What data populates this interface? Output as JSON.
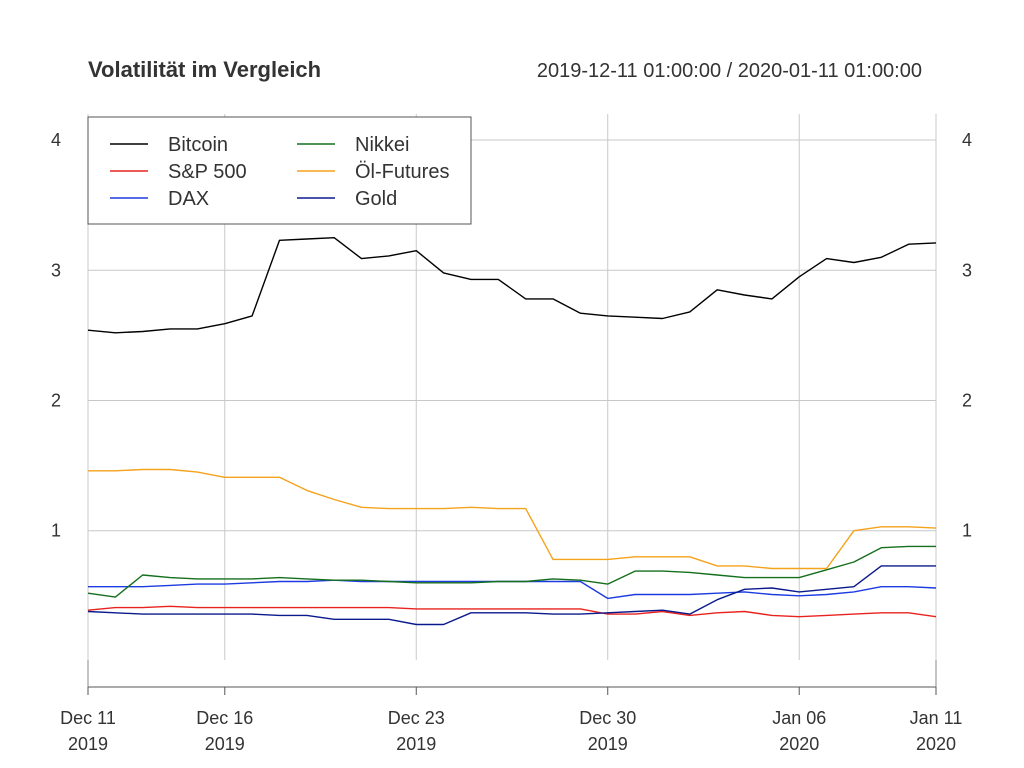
{
  "chart_data": {
    "type": "line",
    "title": "Volatilität im Vergleich",
    "date_range_label": "2019-12-11 01:00:00 / 2020-01-11 01:00:00",
    "xlabel": "",
    "ylabel": "",
    "ylim": [
      -0.2,
      4.2
    ],
    "yticks": [
      "1",
      "2",
      "3",
      "4"
    ],
    "grid": true,
    "legend_position": "top-left",
    "xticks": [
      {
        "label": "Dec 11",
        "year": "2019",
        "date": "2019-12-11"
      },
      {
        "label": "Dec 16",
        "year": "2019",
        "date": "2019-12-16"
      },
      {
        "label": "Dec 23",
        "year": "2019",
        "date": "2019-12-23"
      },
      {
        "label": "Dec 30",
        "year": "2019",
        "date": "2019-12-30"
      },
      {
        "label": "Jan 06",
        "year": "2020",
        "date": "2020-01-06"
      },
      {
        "label": "Jan 11",
        "year": "2020",
        "date": "2020-01-11"
      }
    ],
    "x": [
      "2019-12-11",
      "2019-12-12",
      "2019-12-13",
      "2019-12-14",
      "2019-12-15",
      "2019-12-16",
      "2019-12-17",
      "2019-12-18",
      "2019-12-19",
      "2019-12-20",
      "2019-12-21",
      "2019-12-22",
      "2019-12-23",
      "2019-12-24",
      "2019-12-25",
      "2019-12-26",
      "2019-12-27",
      "2019-12-28",
      "2019-12-29",
      "2019-12-30",
      "2019-12-31",
      "2020-01-01",
      "2020-01-02",
      "2020-01-03",
      "2020-01-04",
      "2020-01-05",
      "2020-01-06",
      "2020-01-07",
      "2020-01-08",
      "2020-01-09",
      "2020-01-10",
      "2020-01-11"
    ],
    "series": [
      {
        "name": "Bitcoin",
        "color": "#000000",
        "values": [
          2.54,
          2.52,
          2.53,
          2.55,
          2.55,
          2.59,
          2.65,
          3.23,
          3.24,
          3.25,
          3.09,
          3.11,
          3.15,
          2.98,
          2.93,
          2.93,
          2.78,
          2.78,
          2.67,
          2.65,
          2.64,
          2.63,
          2.68,
          2.85,
          2.81,
          2.78,
          2.95,
          3.09,
          3.06,
          3.1,
          3.2,
          3.21
        ]
      },
      {
        "name": "S&P 500",
        "color": "#e8231d",
        "values": [
          0.39,
          0.41,
          0.41,
          0.42,
          0.41,
          0.41,
          0.41,
          0.41,
          0.41,
          0.41,
          0.41,
          0.41,
          0.4,
          0.4,
          0.4,
          0.4,
          0.4,
          0.4,
          0.4,
          0.36,
          0.36,
          0.38,
          0.35,
          0.37,
          0.38,
          0.35,
          0.34,
          0.35,
          0.36,
          0.37,
          0.37,
          0.34
        ]
      },
      {
        "name": "DAX",
        "color": "#1c3be0",
        "values": [
          0.57,
          0.57,
          0.57,
          0.58,
          0.59,
          0.59,
          0.6,
          0.61,
          0.61,
          0.62,
          0.61,
          0.61,
          0.61,
          0.61,
          0.61,
          0.61,
          0.61,
          0.61,
          0.61,
          0.48,
          0.51,
          0.51,
          0.51,
          0.52,
          0.53,
          0.51,
          0.5,
          0.51,
          0.53,
          0.57,
          0.57,
          0.56
        ]
      },
      {
        "name": "Nikkei",
        "color": "#156f1d",
        "values": [
          0.52,
          0.49,
          0.66,
          0.64,
          0.63,
          0.63,
          0.63,
          0.64,
          0.63,
          0.62,
          0.62,
          0.61,
          0.6,
          0.6,
          0.6,
          0.61,
          0.61,
          0.63,
          0.62,
          0.59,
          0.69,
          0.69,
          0.68,
          0.66,
          0.64,
          0.64,
          0.64,
          0.7,
          0.76,
          0.87,
          0.88,
          0.88
        ]
      },
      {
        "name": "Öl-Futures",
        "color": "#f5a21c",
        "values": [
          1.46,
          1.46,
          1.47,
          1.47,
          1.45,
          1.41,
          1.41,
          1.41,
          1.31,
          1.24,
          1.18,
          1.17,
          1.17,
          1.17,
          1.18,
          1.17,
          1.17,
          0.78,
          0.78,
          0.78,
          0.8,
          0.8,
          0.8,
          0.73,
          0.73,
          0.71,
          0.71,
          0.71,
          1.0,
          1.03,
          1.03,
          1.02
        ]
      },
      {
        "name": "Gold",
        "color": "#0a1a8c",
        "values": [
          0.38,
          0.37,
          0.36,
          0.36,
          0.36,
          0.36,
          0.36,
          0.35,
          0.35,
          0.32,
          0.32,
          0.32,
          0.28,
          0.28,
          0.37,
          0.37,
          0.37,
          0.36,
          0.36,
          0.37,
          0.38,
          0.39,
          0.36,
          0.47,
          0.55,
          0.56,
          0.53,
          0.55,
          0.57,
          0.73,
          0.73,
          0.73
        ]
      }
    ]
  }
}
